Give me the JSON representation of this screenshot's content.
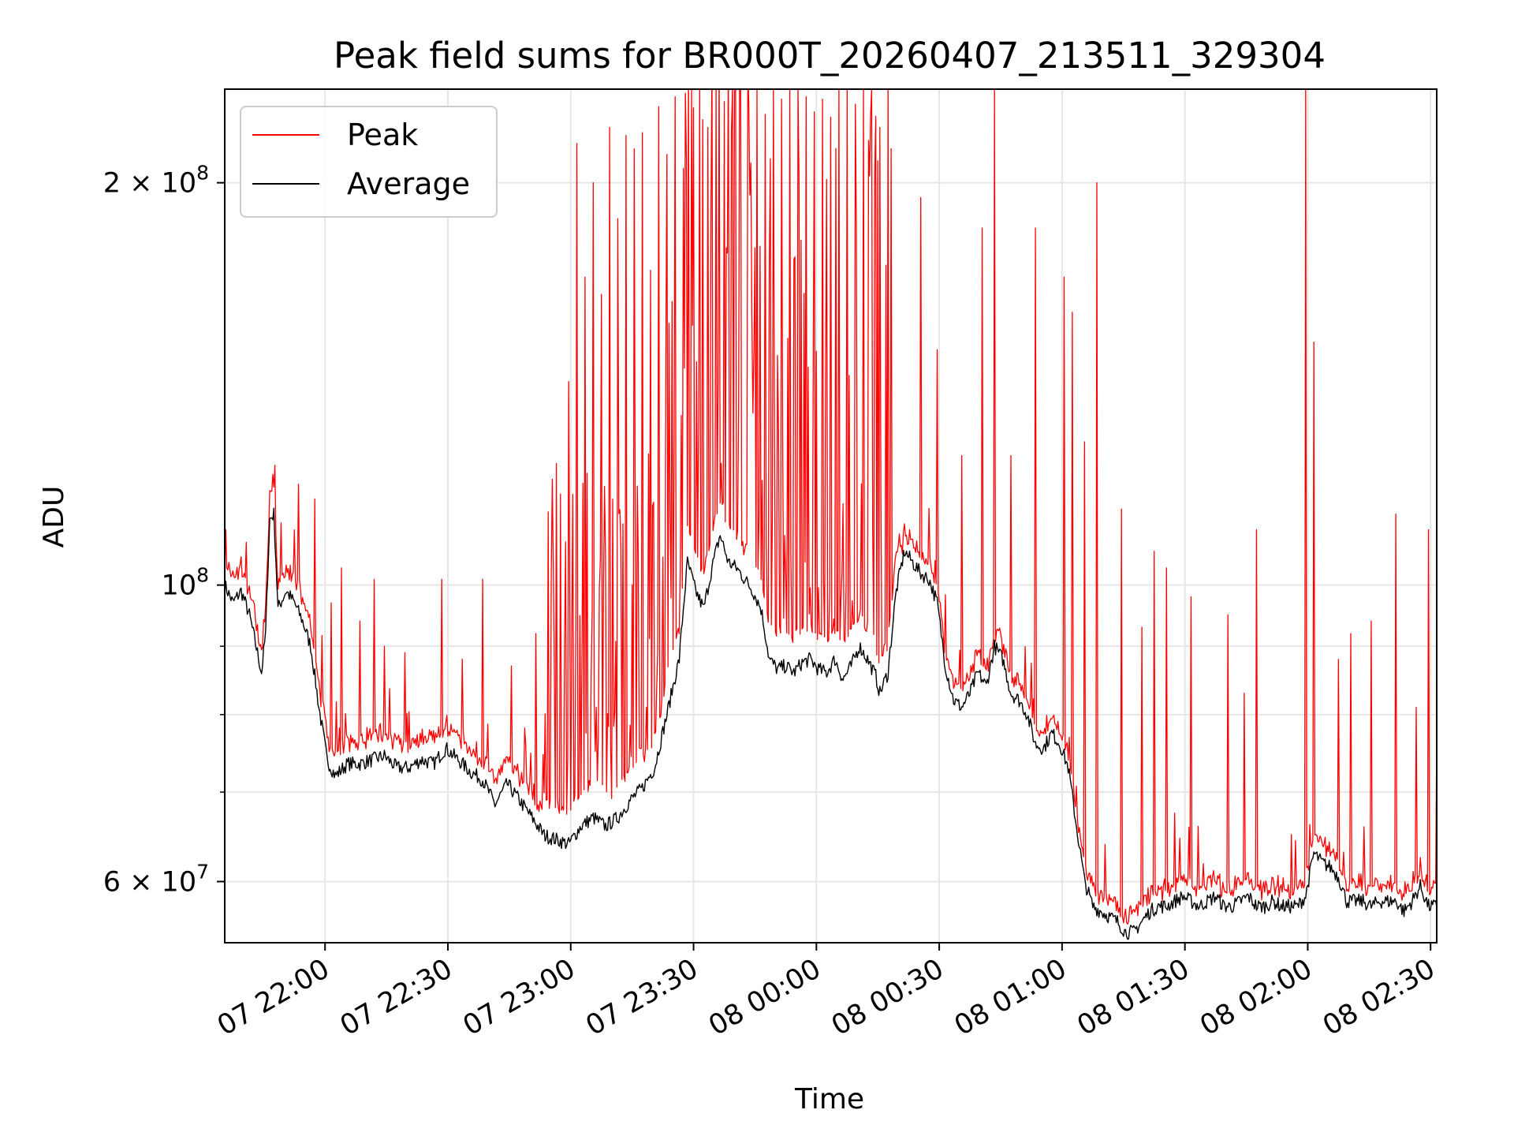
{
  "chart_data": {
    "type": "line",
    "title": "Peak field sums for BR000T_20260407_213511_329304",
    "xlabel": "Time",
    "ylabel": "ADU",
    "yscale": "log",
    "xlim_minutes_after_start": [
      0,
      296
    ],
    "ylim": [
      54000000,
      235000000
    ],
    "grid": true,
    "legend_position": "upper left",
    "x_ticks": [
      {
        "minute": 24.5,
        "label": "07 22:00"
      },
      {
        "minute": 54.5,
        "label": "07 22:30"
      },
      {
        "minute": 84.5,
        "label": "07 23:00"
      },
      {
        "minute": 114.5,
        "label": "07 23:30"
      },
      {
        "minute": 144.5,
        "label": "08 00:00"
      },
      {
        "minute": 174.5,
        "label": "08 00:30"
      },
      {
        "minute": 204.5,
        "label": "08 01:00"
      },
      {
        "minute": 234.5,
        "label": "08 01:30"
      },
      {
        "minute": 264.5,
        "label": "08 02:00"
      },
      {
        "minute": 294.5,
        "label": "08 02:30"
      }
    ],
    "y_tick_labels": [
      {
        "value": 60000000,
        "mantissa": "6",
        "exponent": "7"
      },
      {
        "value": 100000000,
        "mantissa": "",
        "exponent": "8"
      },
      {
        "value": 200000000,
        "mantissa": "2",
        "exponent": "8"
      }
    ],
    "y_minor_grid_values": [
      70000000,
      80000000,
      90000000
    ],
    "series": [
      {
        "name": "Peak",
        "color": "#ff0000",
        "note": "Peak = Average baseline plus spiky excursions; spike values (minute, ADU) below",
        "spikes": [
          [
            0.3,
            110000000
          ],
          [
            11.8,
            121000000
          ],
          [
            18,
            119000000
          ],
          [
            22,
            116000000
          ],
          [
            26,
            97000000
          ],
          [
            28.5,
            103000000
          ],
          [
            33,
            94000000
          ],
          [
            36.5,
            101000000
          ],
          [
            39,
            90000000
          ],
          [
            44,
            89000000
          ],
          [
            53,
            101000000
          ],
          [
            58,
            88000000
          ],
          [
            63,
            101000000
          ],
          [
            70,
            87000000
          ],
          [
            76,
            92000000
          ],
          [
            80,
            120000000
          ],
          [
            82,
            117000000
          ],
          [
            84,
            142000000
          ],
          [
            86,
            214000000
          ],
          [
            88,
            170000000
          ],
          [
            90,
            200000000
          ],
          [
            92,
            165000000
          ],
          [
            94,
            220000000
          ],
          [
            96,
            188000000
          ],
          [
            98,
            217000000
          ],
          [
            100,
            212000000
          ],
          [
            102,
            218000000
          ],
          [
            104,
            172000000
          ],
          [
            106,
            228000000
          ],
          [
            108,
            210000000
          ],
          [
            110,
            232000000
          ],
          [
            112,
            205000000
          ],
          [
            114,
            235000000
          ],
          [
            116,
            235000000
          ],
          [
            118,
            220000000
          ],
          [
            120,
            235000000
          ],
          [
            122,
            230000000
          ],
          [
            124,
            235000000
          ],
          [
            126,
            235000000
          ],
          [
            128,
            229000000
          ],
          [
            130,
            235000000
          ],
          [
            132,
            225000000
          ],
          [
            134,
            235000000
          ],
          [
            136,
            231000000
          ],
          [
            138,
            235000000
          ],
          [
            140,
            235000000
          ],
          [
            142,
            232000000
          ],
          [
            144,
            226000000
          ],
          [
            146,
            231000000
          ],
          [
            148,
            224000000
          ],
          [
            150,
            235000000
          ],
          [
            152,
            235000000
          ],
          [
            154,
            229000000
          ],
          [
            156,
            235000000
          ],
          [
            158,
            235000000
          ],
          [
            160,
            220000000
          ],
          [
            162,
            235000000
          ],
          [
            170,
            195000000
          ],
          [
            174,
            150000000
          ],
          [
            180,
            125000000
          ],
          [
            185,
            185000000
          ],
          [
            188,
            235000000
          ],
          [
            192,
            125000000
          ],
          [
            198,
            185000000
          ],
          [
            205,
            170000000
          ],
          [
            207,
            160000000
          ],
          [
            210,
            128000000
          ],
          [
            213,
            200000000
          ],
          [
            219,
            114000000
          ],
          [
            224,
            93000000
          ],
          [
            227,
            106000000
          ],
          [
            230,
            103000000
          ],
          [
            236,
            98000000
          ],
          [
            245,
            95000000
          ],
          [
            249,
            83000000
          ],
          [
            252,
            110000000
          ],
          [
            264,
            235000000
          ],
          [
            266,
            152000000
          ],
          [
            272,
            88000000
          ],
          [
            275,
            92000000
          ],
          [
            280,
            94000000
          ],
          [
            286,
            113000000
          ],
          [
            291,
            81000000
          ],
          [
            294,
            110000000
          ],
          [
            296,
            78000000
          ]
        ]
      },
      {
        "name": "Average",
        "color": "#000000",
        "points": [
          [
            0,
            100000000
          ],
          [
            2,
            97000000
          ],
          [
            4,
            99000000
          ],
          [
            6,
            95000000
          ],
          [
            8,
            89000000
          ],
          [
            9,
            86000000
          ],
          [
            10,
            92000000
          ],
          [
            11,
            112000000
          ],
          [
            12,
            113000000
          ],
          [
            13,
            96000000
          ],
          [
            15,
            99000000
          ],
          [
            17,
            97000000
          ],
          [
            19,
            94000000
          ],
          [
            21,
            90000000
          ],
          [
            23,
            81000000
          ],
          [
            25,
            74000000
          ],
          [
            27,
            72000000
          ],
          [
            30,
            73500000
          ],
          [
            33,
            73500000
          ],
          [
            36,
            74000000
          ],
          [
            39,
            74500000
          ],
          [
            42,
            73000000
          ],
          [
            45,
            73000000
          ],
          [
            48,
            74000000
          ],
          [
            51,
            73500000
          ],
          [
            54,
            75500000
          ],
          [
            57,
            74000000
          ],
          [
            60,
            72500000
          ],
          [
            63,
            71500000
          ],
          [
            66,
            68500000
          ],
          [
            69,
            71000000
          ],
          [
            72,
            69000000
          ],
          [
            75,
            67000000
          ],
          [
            78,
            65000000
          ],
          [
            81,
            64500000
          ],
          [
            84,
            64000000
          ],
          [
            87,
            66000000
          ],
          [
            90,
            67000000
          ],
          [
            93,
            66000000
          ],
          [
            96,
            67000000
          ],
          [
            99,
            69000000
          ],
          [
            102,
            70500000
          ],
          [
            105,
            73000000
          ],
          [
            108,
            80000000
          ],
          [
            111,
            88000000
          ],
          [
            113,
            104000000
          ],
          [
            115,
            99000000
          ],
          [
            117,
            96000000
          ],
          [
            119,
            103000000
          ],
          [
            121,
            109000000
          ],
          [
            123,
            104000000
          ],
          [
            125,
            103000000
          ],
          [
            127,
            101000000
          ],
          [
            129,
            99000000
          ],
          [
            131,
            96000000
          ],
          [
            133,
            88000000
          ],
          [
            135,
            86500000
          ],
          [
            137,
            87000000
          ],
          [
            139,
            86000000
          ],
          [
            141,
            87500000
          ],
          [
            143,
            88000000
          ],
          [
            145,
            86500000
          ],
          [
            147,
            86000000
          ],
          [
            149,
            88000000
          ],
          [
            151,
            85000000
          ],
          [
            153,
            87000000
          ],
          [
            155,
            90000000
          ],
          [
            157,
            88000000
          ],
          [
            159,
            85500000
          ],
          [
            160,
            83000000
          ],
          [
            162,
            86000000
          ],
          [
            164,
            99000000
          ],
          [
            166,
            106000000
          ],
          [
            168,
            104000000
          ],
          [
            170,
            102000000
          ],
          [
            172,
            101000000
          ],
          [
            174,
            97000000
          ],
          [
            176,
            87000000
          ],
          [
            178,
            82000000
          ],
          [
            180,
            81000000
          ],
          [
            182,
            83000000
          ],
          [
            184,
            86000000
          ],
          [
            186,
            84000000
          ],
          [
            188,
            90000000
          ],
          [
            190,
            88000000
          ],
          [
            192,
            83000000
          ],
          [
            194,
            82000000
          ],
          [
            196,
            80000000
          ],
          [
            198,
            76000000
          ],
          [
            200,
            75500000
          ],
          [
            202,
            77500000
          ],
          [
            204,
            76000000
          ],
          [
            206,
            73000000
          ],
          [
            208,
            66000000
          ],
          [
            210,
            60000000
          ],
          [
            212,
            57500000
          ],
          [
            214,
            57000000
          ],
          [
            216,
            56500000
          ],
          [
            218,
            56000000
          ],
          [
            220,
            55000000
          ],
          [
            222,
            55000000
          ],
          [
            224,
            56000000
          ],
          [
            226,
            57000000
          ],
          [
            228,
            57500000
          ],
          [
            230,
            57500000
          ],
          [
            232,
            58000000
          ],
          [
            234,
            58500000
          ],
          [
            236,
            58000000
          ],
          [
            238,
            57500000
          ],
          [
            240,
            58000000
          ],
          [
            242,
            58500000
          ],
          [
            244,
            57500000
          ],
          [
            246,
            57500000
          ],
          [
            248,
            58000000
          ],
          [
            250,
            58500000
          ],
          [
            252,
            57500000
          ],
          [
            254,
            57500000
          ],
          [
            256,
            58000000
          ],
          [
            258,
            57500000
          ],
          [
            260,
            57500000
          ],
          [
            262,
            57500000
          ],
          [
            264,
            58500000
          ],
          [
            266,
            63000000
          ],
          [
            268,
            62000000
          ],
          [
            270,
            61500000
          ],
          [
            272,
            60500000
          ],
          [
            274,
            58000000
          ],
          [
            276,
            58000000
          ],
          [
            278,
            58000000
          ],
          [
            280,
            57500000
          ],
          [
            282,
            58000000
          ],
          [
            284,
            58000000
          ],
          [
            286,
            58000000
          ],
          [
            288,
            57000000
          ],
          [
            290,
            58000000
          ],
          [
            292,
            59500000
          ],
          [
            294,
            57500000
          ],
          [
            296,
            57500000
          ]
        ]
      }
    ]
  }
}
